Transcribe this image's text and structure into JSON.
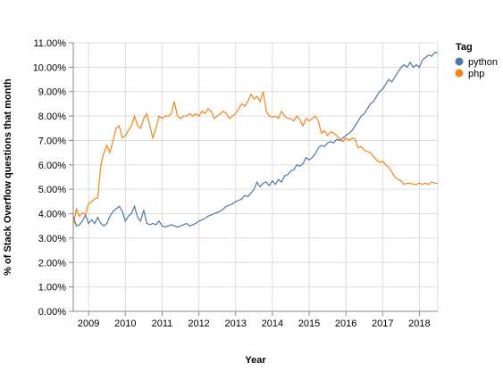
{
  "chart_data": {
    "type": "line",
    "xlabel": "Year",
    "ylabel": "% of Stack Overflow questions that month",
    "x_ticks": [
      "2009",
      "2010",
      "2011",
      "2012",
      "2013",
      "2014",
      "2015",
      "2016",
      "2017",
      "2018"
    ],
    "y_ticks": [
      "0.00%",
      "1.00%",
      "2.00%",
      "3.00%",
      "4.00%",
      "5.00%",
      "6.00%",
      "7.00%",
      "8.00%",
      "9.00%",
      "10.00%",
      "11.00%"
    ],
    "xlim": [
      "2008-08",
      "2018-07"
    ],
    "ylim": [
      0,
      11
    ],
    "grid": true,
    "legend": {
      "title": "Tag",
      "position": "top-right"
    },
    "series": [
      {
        "name": "python",
        "color": "#4c78a8",
        "points": [
          [
            "2008-08",
            3.9
          ],
          [
            "2008-09",
            3.5
          ],
          [
            "2008-10",
            3.55
          ],
          [
            "2008-11",
            3.7
          ],
          [
            "2008-12",
            3.95
          ],
          [
            "2009-01",
            3.6
          ],
          [
            "2009-02",
            3.75
          ],
          [
            "2009-03",
            3.6
          ],
          [
            "2009-04",
            3.85
          ],
          [
            "2009-05",
            3.6
          ],
          [
            "2009-06",
            3.5
          ],
          [
            "2009-07",
            3.6
          ],
          [
            "2009-08",
            3.9
          ],
          [
            "2009-09",
            4.1
          ],
          [
            "2009-10",
            4.2
          ],
          [
            "2009-11",
            4.3
          ],
          [
            "2009-12",
            4.1
          ],
          [
            "2010-01",
            3.7
          ],
          [
            "2010-02",
            3.9
          ],
          [
            "2010-03",
            4.0
          ],
          [
            "2010-04",
            4.3
          ],
          [
            "2010-05",
            3.85
          ],
          [
            "2010-06",
            3.7
          ],
          [
            "2010-07",
            4.15
          ],
          [
            "2010-08",
            3.6
          ],
          [
            "2010-09",
            3.55
          ],
          [
            "2010-10",
            3.6
          ],
          [
            "2010-11",
            3.55
          ],
          [
            "2010-12",
            3.7
          ],
          [
            "2011-01",
            3.5
          ],
          [
            "2011-02",
            3.45
          ],
          [
            "2011-03",
            3.5
          ],
          [
            "2011-04",
            3.55
          ],
          [
            "2011-05",
            3.5
          ],
          [
            "2011-06",
            3.45
          ],
          [
            "2011-07",
            3.5
          ],
          [
            "2011-08",
            3.55
          ],
          [
            "2011-09",
            3.6
          ],
          [
            "2011-10",
            3.5
          ],
          [
            "2011-11",
            3.55
          ],
          [
            "2011-12",
            3.6
          ],
          [
            "2012-01",
            3.7
          ],
          [
            "2012-02",
            3.75
          ],
          [
            "2012-03",
            3.8
          ],
          [
            "2012-04",
            3.9
          ],
          [
            "2012-05",
            3.95
          ],
          [
            "2012-06",
            4.0
          ],
          [
            "2012-07",
            4.05
          ],
          [
            "2012-08",
            4.1
          ],
          [
            "2012-09",
            4.2
          ],
          [
            "2012-10",
            4.3
          ],
          [
            "2012-11",
            4.35
          ],
          [
            "2012-12",
            4.4
          ],
          [
            "2013-01",
            4.5
          ],
          [
            "2013-02",
            4.55
          ],
          [
            "2013-03",
            4.6
          ],
          [
            "2013-04",
            4.75
          ],
          [
            "2013-05",
            4.7
          ],
          [
            "2013-06",
            4.85
          ],
          [
            "2013-07",
            5.0
          ],
          [
            "2013-08",
            5.3
          ],
          [
            "2013-09",
            5.1
          ],
          [
            "2013-10",
            5.25
          ],
          [
            "2013-11",
            5.3
          ],
          [
            "2013-12",
            5.15
          ],
          [
            "2014-01",
            5.35
          ],
          [
            "2014-02",
            5.2
          ],
          [
            "2014-03",
            5.4
          ],
          [
            "2014-04",
            5.3
          ],
          [
            "2014-05",
            5.55
          ],
          [
            "2014-06",
            5.6
          ],
          [
            "2014-07",
            5.75
          ],
          [
            "2014-08",
            5.8
          ],
          [
            "2014-09",
            6.0
          ],
          [
            "2014-10",
            5.95
          ],
          [
            "2014-11",
            6.05
          ],
          [
            "2014-12",
            6.3
          ],
          [
            "2015-01",
            6.2
          ],
          [
            "2015-02",
            6.3
          ],
          [
            "2015-03",
            6.45
          ],
          [
            "2015-04",
            6.7
          ],
          [
            "2015-05",
            6.8
          ],
          [
            "2015-06",
            6.75
          ],
          [
            "2015-07",
            6.9
          ],
          [
            "2015-08",
            6.95
          ],
          [
            "2015-09",
            6.9
          ],
          [
            "2015-10",
            7.05
          ],
          [
            "2015-11",
            7.0
          ],
          [
            "2015-12",
            7.1
          ],
          [
            "2016-01",
            7.2
          ],
          [
            "2016-02",
            7.3
          ],
          [
            "2016-03",
            7.4
          ],
          [
            "2016-04",
            7.6
          ],
          [
            "2016-05",
            7.8
          ],
          [
            "2016-06",
            8.0
          ],
          [
            "2016-07",
            8.1
          ],
          [
            "2016-08",
            8.3
          ],
          [
            "2016-09",
            8.5
          ],
          [
            "2016-10",
            8.6
          ],
          [
            "2016-11",
            8.8
          ],
          [
            "2016-12",
            9.0
          ],
          [
            "2017-01",
            9.1
          ],
          [
            "2017-02",
            9.3
          ],
          [
            "2017-03",
            9.5
          ],
          [
            "2017-04",
            9.4
          ],
          [
            "2017-05",
            9.6
          ],
          [
            "2017-06",
            9.8
          ],
          [
            "2017-07",
            10.0
          ],
          [
            "2017-08",
            10.1
          ],
          [
            "2017-09",
            10.0
          ],
          [
            "2017-10",
            10.2
          ],
          [
            "2017-11",
            10.0
          ],
          [
            "2017-12",
            10.1
          ],
          [
            "2018-01",
            10.0
          ],
          [
            "2018-02",
            10.3
          ],
          [
            "2018-03",
            10.4
          ],
          [
            "2018-04",
            10.5
          ],
          [
            "2018-05",
            10.45
          ],
          [
            "2018-06",
            10.6
          ],
          [
            "2018-07",
            10.6
          ]
        ]
      },
      {
        "name": "php",
        "color": "#f58518",
        "points": [
          [
            "2008-08",
            3.5
          ],
          [
            "2008-09",
            4.2
          ],
          [
            "2008-10",
            3.9
          ],
          [
            "2008-11",
            4.05
          ],
          [
            "2008-12",
            3.95
          ],
          [
            "2009-01",
            4.4
          ],
          [
            "2009-02",
            4.5
          ],
          [
            "2009-03",
            4.6
          ],
          [
            "2009-04",
            4.65
          ],
          [
            "2009-05",
            6.0
          ],
          [
            "2009-06",
            6.5
          ],
          [
            "2009-07",
            6.8
          ],
          [
            "2009-08",
            6.5
          ],
          [
            "2009-09",
            7.0
          ],
          [
            "2009-10",
            7.5
          ],
          [
            "2009-11",
            7.6
          ],
          [
            "2009-12",
            7.1
          ],
          [
            "2010-01",
            7.2
          ],
          [
            "2010-02",
            7.4
          ],
          [
            "2010-03",
            7.6
          ],
          [
            "2010-04",
            8.0
          ],
          [
            "2010-05",
            7.6
          ],
          [
            "2010-06",
            7.5
          ],
          [
            "2010-07",
            7.9
          ],
          [
            "2010-08",
            8.1
          ],
          [
            "2010-09",
            7.6
          ],
          [
            "2010-10",
            7.1
          ],
          [
            "2010-11",
            7.5
          ],
          [
            "2010-12",
            8.0
          ],
          [
            "2011-01",
            7.9
          ],
          [
            "2011-02",
            8.0
          ],
          [
            "2011-03",
            8.0
          ],
          [
            "2011-04",
            8.1
          ],
          [
            "2011-05",
            8.6
          ],
          [
            "2011-06",
            8.0
          ],
          [
            "2011-07",
            7.9
          ],
          [
            "2011-08",
            8.0
          ],
          [
            "2011-09",
            8.0
          ],
          [
            "2011-10",
            8.1
          ],
          [
            "2011-11",
            8.0
          ],
          [
            "2011-12",
            8.1
          ],
          [
            "2012-01",
            8.0
          ],
          [
            "2012-02",
            8.2
          ],
          [
            "2012-03",
            8.1
          ],
          [
            "2012-04",
            8.3
          ],
          [
            "2012-05",
            8.2
          ],
          [
            "2012-06",
            7.9
          ],
          [
            "2012-07",
            8.0
          ],
          [
            "2012-08",
            8.1
          ],
          [
            "2012-09",
            8.2
          ],
          [
            "2012-10",
            8.1
          ],
          [
            "2012-11",
            7.9
          ],
          [
            "2012-12",
            8.0
          ],
          [
            "2013-01",
            8.1
          ],
          [
            "2013-02",
            8.3
          ],
          [
            "2013-03",
            8.5
          ],
          [
            "2013-04",
            8.4
          ],
          [
            "2013-05",
            8.6
          ],
          [
            "2013-06",
            8.9
          ],
          [
            "2013-07",
            8.7
          ],
          [
            "2013-08",
            8.8
          ],
          [
            "2013-09",
            8.6
          ],
          [
            "2013-10",
            9.0
          ],
          [
            "2013-11",
            8.2
          ],
          [
            "2013-12",
            8.0
          ],
          [
            "2014-01",
            7.95
          ],
          [
            "2014-02",
            8.0
          ],
          [
            "2014-03",
            7.9
          ],
          [
            "2014-04",
            8.2
          ],
          [
            "2014-05",
            8.0
          ],
          [
            "2014-06",
            7.9
          ],
          [
            "2014-07",
            7.9
          ],
          [
            "2014-08",
            7.8
          ],
          [
            "2014-09",
            8.0
          ],
          [
            "2014-10",
            7.85
          ],
          [
            "2014-11",
            7.6
          ],
          [
            "2014-12",
            7.9
          ],
          [
            "2015-01",
            7.8
          ],
          [
            "2015-02",
            7.9
          ],
          [
            "2015-03",
            8.0
          ],
          [
            "2015-04",
            7.8
          ],
          [
            "2015-05",
            7.3
          ],
          [
            "2015-06",
            7.4
          ],
          [
            "2015-07",
            7.2
          ],
          [
            "2015-08",
            7.35
          ],
          [
            "2015-09",
            7.3
          ],
          [
            "2015-10",
            7.2
          ],
          [
            "2015-11",
            7.05
          ],
          [
            "2015-12",
            6.95
          ],
          [
            "2016-01",
            7.1
          ],
          [
            "2016-02",
            7.0
          ],
          [
            "2016-03",
            7.1
          ],
          [
            "2016-04",
            7.05
          ],
          [
            "2016-05",
            6.7
          ],
          [
            "2016-06",
            6.75
          ],
          [
            "2016-07",
            6.6
          ],
          [
            "2016-08",
            6.55
          ],
          [
            "2016-09",
            6.5
          ],
          [
            "2016-10",
            6.35
          ],
          [
            "2016-11",
            6.2
          ],
          [
            "2016-12",
            6.1
          ],
          [
            "2017-01",
            6.15
          ],
          [
            "2017-02",
            6.0
          ],
          [
            "2017-03",
            5.9
          ],
          [
            "2017-04",
            5.7
          ],
          [
            "2017-05",
            5.5
          ],
          [
            "2017-06",
            5.4
          ],
          [
            "2017-07",
            5.35
          ],
          [
            "2017-08",
            5.2
          ],
          [
            "2017-09",
            5.25
          ],
          [
            "2017-10",
            5.25
          ],
          [
            "2017-11",
            5.2
          ],
          [
            "2017-12",
            5.2
          ],
          [
            "2018-01",
            5.25
          ],
          [
            "2018-02",
            5.2
          ],
          [
            "2018-03",
            5.25
          ],
          [
            "2018-04",
            5.2
          ],
          [
            "2018-05",
            5.3
          ],
          [
            "2018-06",
            5.25
          ],
          [
            "2018-07",
            5.25
          ]
        ]
      }
    ]
  }
}
